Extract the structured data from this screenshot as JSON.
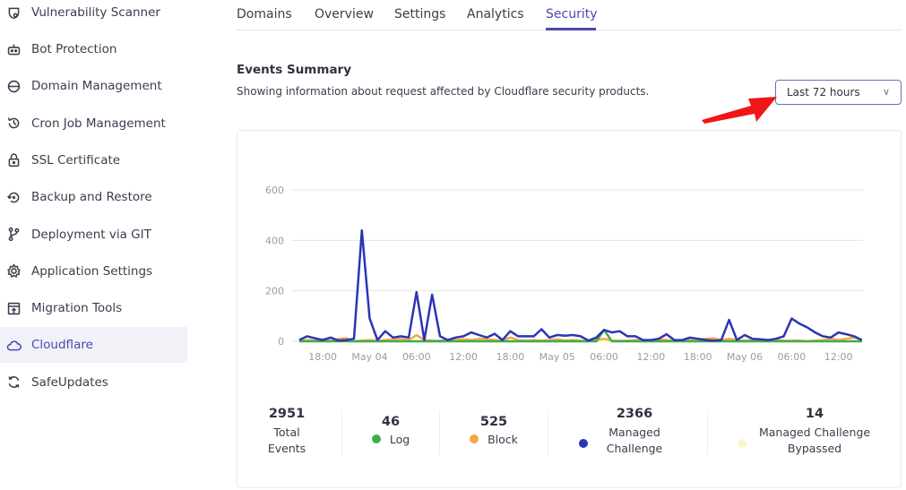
{
  "sidebar": {
    "items": [
      {
        "label": "Vulnerability Scanner",
        "icon": "shield-scan-icon"
      },
      {
        "label": "Bot Protection",
        "icon": "robot-icon"
      },
      {
        "label": "Domain Management",
        "icon": "www-globe-icon"
      },
      {
        "label": "Cron Job Management",
        "icon": "history-icon"
      },
      {
        "label": "SSL Certificate",
        "icon": "lock-icon"
      },
      {
        "label": "Backup and Restore",
        "icon": "restore-icon"
      },
      {
        "label": "Deployment via GIT",
        "icon": "git-branch-icon"
      },
      {
        "label": "Application Settings",
        "icon": "gear-icon"
      },
      {
        "label": "Migration Tools",
        "icon": "upload-window-icon"
      },
      {
        "label": "Cloudflare",
        "icon": "cloud-icon",
        "active": true
      },
      {
        "label": "SafeUpdates",
        "icon": "refresh-icon"
      }
    ]
  },
  "tabs": [
    {
      "label": "Domains"
    },
    {
      "label": "Overview"
    },
    {
      "label": "Settings"
    },
    {
      "label": "Analytics"
    },
    {
      "label": "Security",
      "active": true
    }
  ],
  "header": {
    "title": "Events Summary",
    "subtitle": "Showing information about request affected by Cloudflare security products.",
    "range": "Last 72 hours"
  },
  "colors": {
    "accent": "#4a48b0",
    "log": "#3fae4a",
    "block": "#f5a54a",
    "managed": "#2b35b5",
    "bypassed": "#fbf6c8",
    "annotation_arrow": "#f01616"
  },
  "stats": [
    {
      "value": "2951",
      "label": "Total Events"
    },
    {
      "value": "46",
      "label": "Log"
    },
    {
      "value": "525",
      "label": "Block"
    },
    {
      "value": "2366",
      "label": "Managed Challenge"
    },
    {
      "value": "14",
      "label": "Managed Challenge Bypassed"
    }
  ],
  "chart_data": {
    "type": "line",
    "ylim": [
      0,
      600
    ],
    "y_ticks": [
      "0",
      "200",
      "400",
      "600"
    ],
    "x_ticks": [
      "18:00",
      "May 04",
      "06:00",
      "12:00",
      "18:00",
      "May 05",
      "06:00",
      "12:00",
      "18:00",
      "May 06",
      "06:00",
      "12:00"
    ],
    "grid": true,
    "series": [
      {
        "name": "Managed Challenge",
        "color": "#2b35b5",
        "values": [
          5,
          20,
          12,
          5,
          15,
          3,
          5,
          10,
          440,
          90,
          5,
          40,
          15,
          20,
          15,
          195,
          5,
          185,
          20,
          5,
          15,
          20,
          35,
          25,
          15,
          30,
          5,
          40,
          20,
          20,
          20,
          48,
          15,
          25,
          22,
          25,
          20,
          3,
          15,
          45,
          35,
          40,
          20,
          20,
          5,
          5,
          10,
          28,
          5,
          5,
          15,
          10,
          5,
          3,
          5,
          85,
          5,
          25,
          10,
          8,
          5,
          10,
          20,
          90,
          70,
          55,
          35,
          20,
          15,
          35,
          28,
          20,
          5
        ]
      },
      {
        "name": "Block",
        "color": "#f5a54a",
        "values": [
          0,
          5,
          3,
          8,
          2,
          10,
          12,
          0,
          3,
          5,
          2,
          5,
          8,
          10,
          5,
          25,
          5,
          3,
          2,
          5,
          5,
          8,
          5,
          10,
          8,
          5,
          3,
          15,
          5,
          3,
          5,
          3,
          5,
          8,
          3,
          5,
          3,
          0,
          5,
          10,
          3,
          2,
          3,
          5,
          3,
          5,
          8,
          5,
          3,
          5,
          5,
          8,
          10,
          12,
          5,
          10,
          5,
          3,
          5,
          3,
          5,
          5,
          3,
          2,
          3,
          0,
          3,
          5,
          10,
          5,
          10,
          15,
          5
        ]
      },
      {
        "name": "Log",
        "color": "#3fae4a",
        "values": [
          0,
          0,
          0,
          0,
          0,
          0,
          0,
          0,
          0,
          0,
          0,
          0,
          0,
          0,
          0,
          0,
          0,
          0,
          0,
          0,
          0,
          0,
          0,
          0,
          0,
          0,
          0,
          0,
          0,
          0,
          0,
          0,
          0,
          0,
          0,
          0,
          0,
          0,
          0,
          45,
          0,
          0,
          0,
          0,
          0,
          0,
          0,
          0,
          0,
          0,
          0,
          0,
          0,
          0,
          0,
          0,
          0,
          0,
          0,
          0,
          0,
          0,
          0,
          0,
          0,
          0,
          0,
          0,
          0,
          0,
          0,
          0,
          0
        ]
      },
      {
        "name": "Managed Challenge Bypassed",
        "color": "#fbf6c8",
        "values": [
          0,
          0,
          0,
          0,
          0,
          0,
          0,
          0,
          0,
          0,
          0,
          0,
          0,
          0,
          0,
          0,
          0,
          0,
          0,
          0,
          0,
          0,
          0,
          0,
          0,
          0,
          0,
          0,
          0,
          0,
          0,
          0,
          0,
          0,
          0,
          0,
          0,
          0,
          0,
          0,
          0,
          0,
          0,
          0,
          0,
          0,
          0,
          0,
          0,
          0,
          0,
          0,
          0,
          0,
          0,
          0,
          0,
          0,
          0,
          0,
          0,
          0,
          0,
          0,
          0,
          0,
          0,
          0,
          0,
          0,
          0,
          0,
          0
        ]
      }
    ]
  }
}
